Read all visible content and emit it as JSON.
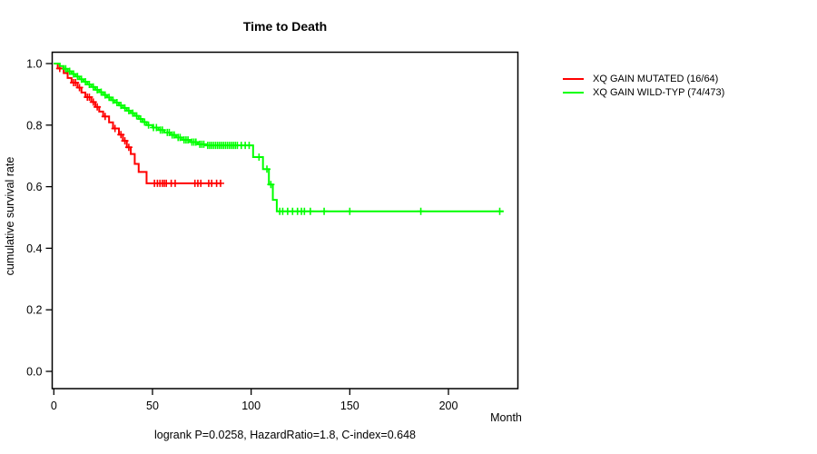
{
  "chart_data": {
    "type": "line",
    "subtype": "kaplan-meier-step",
    "title": "Time to Death",
    "xlabel": "Month",
    "ylabel": "cumulative survival rate",
    "annotation": "logrank P=0.0258, HazardRatio=1.8, C-index=0.648",
    "xlim": [
      0,
      236
    ],
    "ylim": [
      0.0,
      1.0
    ],
    "x_ticks": [
      0,
      50,
      100,
      150,
      200
    ],
    "y_ticks": [
      1.0,
      0.8,
      0.6,
      0.4,
      0.2,
      0.0
    ],
    "grid": false,
    "legend_position": "right-outside",
    "axis_color": "#000000",
    "series": [
      {
        "name": "XQ GAIN MUTATED (16/64)",
        "events": "16/64",
        "color": "#ff0000",
        "end_time": 85,
        "steps": [
          [
            0,
            1.0
          ],
          [
            2,
            0.984
          ],
          [
            5,
            0.969
          ],
          [
            7,
            0.953
          ],
          [
            9,
            0.938
          ],
          [
            12,
            0.922
          ],
          [
            14,
            0.906
          ],
          [
            16,
            0.891
          ],
          [
            19,
            0.875
          ],
          [
            21,
            0.859
          ],
          [
            23,
            0.844
          ],
          [
            25,
            0.828
          ],
          [
            28,
            0.809
          ],
          [
            30,
            0.789
          ],
          [
            33,
            0.769
          ],
          [
            35,
            0.749
          ],
          [
            37,
            0.728
          ],
          [
            39,
            0.706
          ],
          [
            41,
            0.674
          ],
          [
            43,
            0.648
          ],
          [
            47,
            0.611
          ]
        ],
        "censor_times": [
          3,
          10,
          11,
          13,
          17,
          18,
          20,
          22,
          26,
          31,
          34,
          36,
          38,
          51,
          52.5,
          53.8,
          55,
          56,
          57,
          59.5,
          61.5,
          71.5,
          73,
          74.5,
          78.5,
          80,
          82.5,
          84.5
        ]
      },
      {
        "name": "XQ GAIN WILD-TYP (74/473)",
        "events": "74/473",
        "color": "#00ff00",
        "end_time": 228,
        "steps": [
          [
            0,
            1.0
          ],
          [
            3,
            0.992
          ],
          [
            5,
            0.983
          ],
          [
            7,
            0.975
          ],
          [
            9,
            0.966
          ],
          [
            11,
            0.958
          ],
          [
            13,
            0.949
          ],
          [
            15,
            0.941
          ],
          [
            17,
            0.932
          ],
          [
            19,
            0.924
          ],
          [
            21,
            0.915
          ],
          [
            23,
            0.907
          ],
          [
            25,
            0.898
          ],
          [
            27,
            0.89
          ],
          [
            29,
            0.881
          ],
          [
            31,
            0.873
          ],
          [
            33,
            0.864
          ],
          [
            35,
            0.856
          ],
          [
            37,
            0.847
          ],
          [
            39,
            0.839
          ],
          [
            41,
            0.83
          ],
          [
            43,
            0.82
          ],
          [
            45,
            0.81
          ],
          [
            47,
            0.8
          ],
          [
            50,
            0.792
          ],
          [
            53,
            0.784
          ],
          [
            56,
            0.776
          ],
          [
            59,
            0.768
          ],
          [
            62,
            0.76
          ],
          [
            65,
            0.752
          ],
          [
            69,
            0.745
          ],
          [
            73,
            0.738
          ],
          [
            77,
            0.734
          ],
          [
            101,
            0.696
          ],
          [
            106,
            0.657
          ],
          [
            109,
            0.607
          ],
          [
            111,
            0.557
          ],
          [
            113,
            0.52
          ]
        ],
        "censor_times": [
          6,
          8,
          10,
          12,
          14,
          16,
          18,
          20,
          22,
          24,
          26,
          28,
          30,
          32,
          34,
          36,
          38,
          40,
          42,
          44,
          46,
          48,
          50.5,
          52,
          54,
          55,
          57.5,
          58.5,
          60,
          61,
          63,
          64,
          66,
          67,
          68,
          70,
          71,
          72,
          74,
          75,
          76,
          78,
          79,
          80,
          81,
          82,
          83,
          84,
          85,
          86,
          87,
          88,
          89,
          90,
          91,
          92,
          93,
          95,
          97,
          99,
          104,
          108,
          110,
          114.5,
          116,
          118.5,
          121,
          123.5,
          125.5,
          127,
          130,
          137,
          150,
          186,
          226
        ]
      }
    ]
  }
}
